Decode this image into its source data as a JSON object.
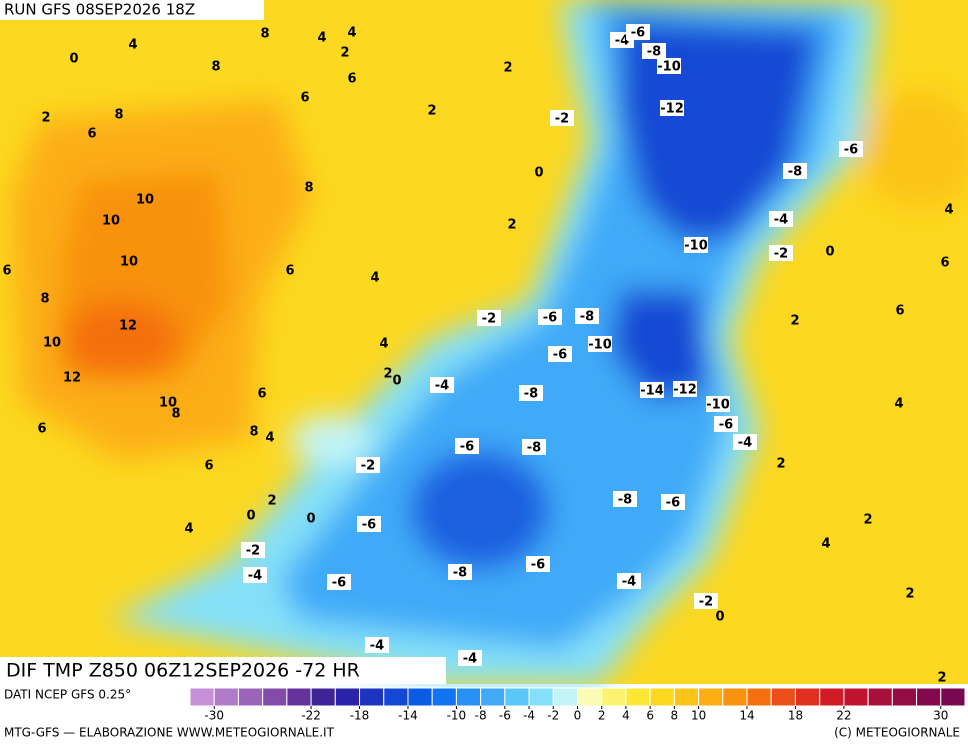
{
  "header": {
    "run": "RUN GFS 08SEP2026 18Z"
  },
  "map": {
    "title": "DIF TMP Z850 06Z12SEP2026 -72 HR",
    "contour_labels": [
      4,
      0,
      8,
      4,
      4,
      2,
      8,
      6,
      6,
      8,
      2,
      6,
      2,
      8,
      10,
      10,
      10,
      6,
      4,
      6,
      8,
      12,
      10,
      12,
      4,
      2,
      0,
      10,
      8,
      6,
      8,
      4,
      6,
      6,
      2,
      0,
      0,
      4,
      2,
      0,
      2,
      -4,
      -6,
      -8,
      -10,
      -2,
      -12,
      -6,
      -8,
      -4,
      -10,
      -2,
      0,
      4,
      6,
      6,
      2,
      -2,
      -6,
      -8,
      -10,
      -6,
      -4,
      -8,
      -14,
      -12,
      -10,
      -6,
      -4,
      4,
      2,
      -6,
      -8,
      -2,
      -8,
      -6,
      -6,
      2,
      4,
      -2,
      -4,
      -6,
      -8,
      -6,
      -4,
      -2,
      0,
      2,
      -4,
      -4,
      2
    ]
  },
  "colorbar": {
    "source": "DATI NCEP GFS 0.25°",
    "range": [
      -32,
      32
    ],
    "colors": [
      "#c690d8",
      "#b07cc8",
      "#9a64b8",
      "#824ca8",
      "#64349c",
      "#3e2494",
      "#2a22a8",
      "#1e34c0",
      "#1448d4",
      "#0a5ce4",
      "#1274f0",
      "#2690f6",
      "#40aaf8",
      "#5cc6f8",
      "#84e0f8",
      "#c4f4f8",
      "#fcfcb4",
      "#fcf470",
      "#fce834",
      "#fcd820",
      "#fcc418",
      "#fcae14",
      "#f89210",
      "#f47010",
      "#ec5018",
      "#e03020",
      "#d01c24",
      "#c01430",
      "#a8103c",
      "#940c44",
      "#84084c",
      "#780850"
    ],
    "ticks": [
      -30,
      -22,
      -18,
      -14,
      -10,
      -8,
      -6,
      -4,
      -2,
      0,
      2,
      4,
      6,
      8,
      10,
      14,
      18,
      22,
      30
    ]
  },
  "footer": {
    "left": "MTG-GFS — ELABORAZIONE WWW.METEOGIORNALE.IT",
    "right": "(C) METEOGIORNALE"
  }
}
